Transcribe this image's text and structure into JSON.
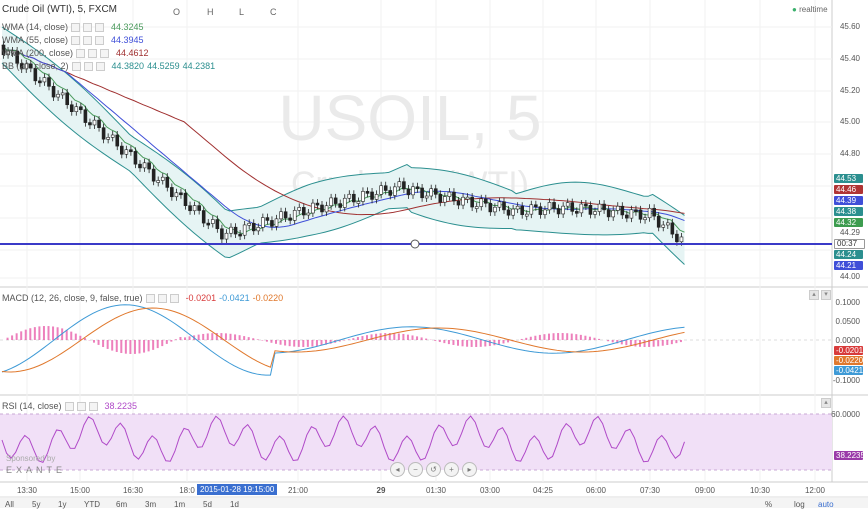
{
  "symbol": {
    "title": "Crude Oil (WTI), 5, FXCM",
    "open_label": "O",
    "high_label": "H",
    "low_label": "L",
    "close_label": "C",
    "realtime": "realtime"
  },
  "watermark": {
    "line1": "USOIL, 5",
    "line2": "Crude Oil (WTI)"
  },
  "indicators": [
    {
      "name": "WMA (14, close)",
      "values": [
        "44.3245"
      ],
      "colors": [
        "#4a9a5c"
      ]
    },
    {
      "name": "WMA (55, close)",
      "values": [
        "44.3945"
      ],
      "colors": [
        "#3f4fd8"
      ]
    },
    {
      "name": "WMA (200, close)",
      "values": [
        "44.4612"
      ],
      "colors": [
        "#a03030"
      ]
    },
    {
      "name": "BB (20, close, 2)",
      "values": [
        "44.3820",
        "44.5259",
        "44.2381"
      ],
      "colors": [
        "#2b8f8f",
        "#2b8f8f",
        "#2b8f8f"
      ]
    }
  ],
  "price_axis": [
    "45.60",
    "45.40",
    "45.20",
    "45.00",
    "44.80",
    "44.29",
    "44.00"
  ],
  "price_tags": [
    {
      "text": "44.53",
      "color": "#2b8f8f"
    },
    {
      "text": "44.46",
      "color": "#b03434"
    },
    {
      "text": "44.39",
      "color": "#3f4fd8"
    },
    {
      "text": "44.38",
      "color": "#2b8f8f"
    },
    {
      "text": "44.32",
      "color": "#3d9c4f"
    },
    {
      "text": "00:37",
      "color": "#ffffff"
    },
    {
      "text": "44.24",
      "color": "#2b8f8f"
    },
    {
      "text": "44.21",
      "color": "#3f4fd8"
    }
  ],
  "macd": {
    "label": "MACD (12, 26, close, 9, false, true)",
    "v1": "-0.0201",
    "v2": "-0.0421",
    "v3": "-0.0220",
    "axis": [
      "0.1000",
      "0.0500",
      "0.0000",
      "-0.1000"
    ],
    "tags": [
      {
        "text": "-0.0201",
        "color": "#d83b3b"
      },
      {
        "text": "-0.0220",
        "color": "#e0782c"
      },
      {
        "text": "-0.0421",
        "color": "#3e9ad6"
      }
    ]
  },
  "rsi": {
    "label": "RSI (14, close)",
    "value": "38.2235",
    "axis": [
      "60.0000"
    ],
    "tag": "38.2235"
  },
  "sponsor": {
    "line1": "Sponsored by",
    "line2": "EXANTE"
  },
  "time_axis": [
    "13:30",
    "15:00",
    "16:30",
    "18:0",
    "21:00",
    "29",
    "01:30",
    "03:00",
    "04:25",
    "06:00",
    "07:30",
    "09:00",
    "10:30",
    "12:00"
  ],
  "crosshair_time": "2015-01-28 19:15:00",
  "ranges": [
    "All",
    "5y",
    "1y",
    "YTD",
    "6m",
    "3m",
    "1m",
    "5d",
    "1d"
  ],
  "bottom_right": {
    "percent": "%",
    "log": "log",
    "auto": "auto"
  },
  "colors": {
    "bull": "#ffffff",
    "bear": "#222222",
    "crosshair": "#3a3ac8",
    "rsi_fill": "#f1e0f7",
    "rsi_line": "#b04ac8",
    "macd_hist_pos": "#e64aa0",
    "macd_hist_neg": "#e64aa0"
  }
}
